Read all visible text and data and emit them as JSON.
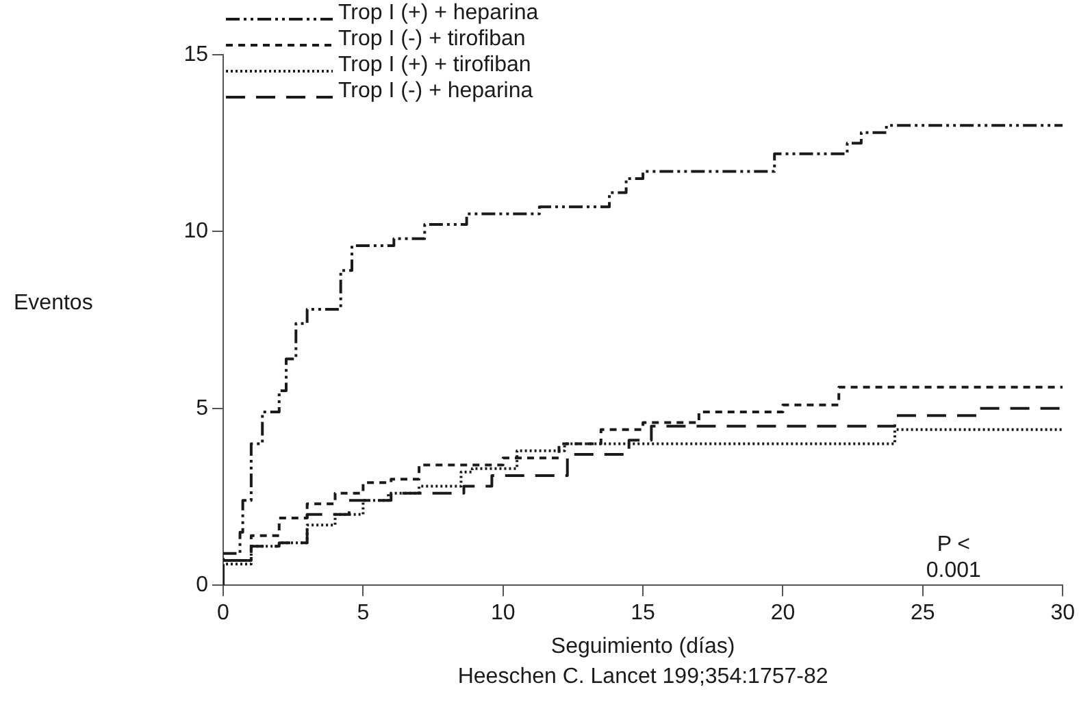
{
  "chart_data": {
    "type": "step",
    "xlabel": "Seguimiento (días)",
    "ylabel": "Eventos",
    "annotations": [
      "P < 0.001",
      "Heeschen C. Lancet 199;354:1757-82"
    ],
    "xlim": [
      0,
      30
    ],
    "xticks": [
      0,
      5,
      10,
      15,
      20,
      25,
      30
    ],
    "ylim": [
      0,
      15
    ],
    "yticks": [
      0,
      5,
      10,
      15
    ],
    "grid": false,
    "legend": "top left",
    "series": [
      {
        "name": "Trop I (+) + heparina",
        "color": "#1a1a1a",
        "line_style": "dashed",
        "x": [
          0,
          0,
          0.6,
          0.7,
          1.0,
          1.4,
          2.0,
          2.25,
          2.6,
          3.0,
          4.2,
          4.6,
          6.1,
          7.2,
          8.7,
          11.3,
          13.8,
          14.4,
          15.0,
          19.7,
          22.3,
          22.8,
          23.7,
          24.6,
          30
        ],
        "values": [
          0,
          0.5,
          0.9,
          1.5,
          2.4,
          4.0,
          4.9,
          5.5,
          6.4,
          7.4,
          7.8,
          8.9,
          9.6,
          9.8,
          10.2,
          10.5,
          10.7,
          11.1,
          11.5,
          11.7,
          12.2,
          12.5,
          12.8,
          13.0,
          13.0
        ]
      },
      {
        "name": "Trop I (-) + tirofiban",
        "color": "#1a1a1a",
        "line_style": "dashed",
        "x": [
          0,
          1,
          2,
          3,
          4,
          5,
          6,
          7,
          8.3,
          10,
          12,
          13.5,
          15,
          17,
          20,
          22,
          27.5,
          30
        ],
        "values": [
          0,
          0.7,
          1.4,
          1.9,
          2.3,
          2.6,
          2.9,
          3.0,
          3.4,
          3.4,
          3.6,
          4.0,
          4.4,
          4.6,
          4.9,
          5.1,
          5.6,
          5.6
        ]
      },
      {
        "name": "Trop I (+) + tirofiban",
        "color": "#1a1a1a",
        "line_style": "dotted",
        "x": [
          0,
          1,
          2,
          3,
          4,
          5,
          5.9,
          7,
          8.5,
          8.9,
          10.5,
          12.2,
          13.5,
          24,
          24.4,
          30
        ],
        "values": [
          0,
          0.6,
          1.1,
          1.2,
          1.7,
          2.0,
          2.4,
          2.6,
          2.8,
          3.2,
          3.3,
          3.8,
          4.0,
          4.0,
          4.4,
          4.4
        ]
      },
      {
        "name": "Trop I (-) + heparina",
        "color": "#1a1a1a",
        "line_style": "dashed",
        "x": [
          0,
          1,
          2,
          3,
          3.5,
          4.5,
          6,
          8.6,
          9.6,
          12.3,
          14.5,
          15.3,
          24,
          27,
          29.5,
          30
        ],
        "values": [
          0,
          0.7,
          1.1,
          1.2,
          2.0,
          2.0,
          2.4,
          2.6,
          2.8,
          3.1,
          3.7,
          4.1,
          4.5,
          4.8,
          5.0,
          5.0
        ]
      }
    ]
  }
}
